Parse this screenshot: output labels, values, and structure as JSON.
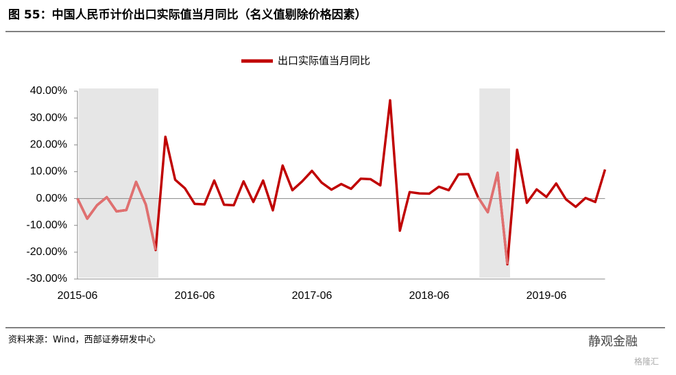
{
  "chart_data": {
    "type": "line",
    "title": "图 55：中国人民币计价出口实际值当月同比（名义值剔除价格因素）",
    "source": "资料来源：Wind，西部证券研发中心",
    "x": [
      "2015-06",
      "2015-07",
      "2015-08",
      "2015-09",
      "2015-10",
      "2015-11",
      "2015-12",
      "2016-01",
      "2016-02",
      "2016-03",
      "2016-04",
      "2016-05",
      "2016-06",
      "2016-07",
      "2016-08",
      "2016-09",
      "2016-10",
      "2016-11",
      "2016-12",
      "2017-01",
      "2017-02",
      "2017-03",
      "2017-04",
      "2017-05",
      "2017-06",
      "2017-07",
      "2017-08",
      "2017-09",
      "2017-10",
      "2017-11",
      "2017-12",
      "2018-01",
      "2018-02",
      "2018-03",
      "2018-04",
      "2018-05",
      "2018-06",
      "2018-07",
      "2018-08",
      "2018-09",
      "2018-10",
      "2018-11",
      "2018-12",
      "2019-01",
      "2019-02",
      "2019-03",
      "2019-04",
      "2019-05",
      "2019-06",
      "2019-07",
      "2019-08",
      "2019-09",
      "2019-10",
      "2019-11",
      "2019-12"
    ],
    "series": [
      {
        "name": "出口实际值当月同比",
        "color": "#c00000",
        "values": [
          0,
          -7.5,
          -2.5,
          0.5,
          -4.8,
          -4.3,
          6.2,
          -2.3,
          -19.2,
          23,
          7,
          3.8,
          -2,
          -2.2,
          6.7,
          -2.3,
          -2.5,
          6.4,
          -1.3,
          6.7,
          -4.4,
          12.3,
          3.1,
          6.4,
          10.3,
          5.9,
          3.3,
          5.4,
          3.6,
          7.4,
          7.2,
          4.9,
          36.6,
          -12,
          2.4,
          1.9,
          1.8,
          4.4,
          3.1,
          9.0,
          9.1,
          0.5,
          -5.1,
          9.6,
          -24.5,
          18.2,
          -1.6,
          3.4,
          0.6,
          5.6,
          -0.3,
          -3.1,
          0.2,
          -1.3,
          10.8
        ]
      }
    ],
    "shaded_periods": [
      [
        "2015-06",
        "2016-02"
      ],
      [
        "2018-11",
        "2019-02"
      ]
    ],
    "shaded_line_color": "#e07070",
    "shade_color": "#e6e6e6",
    "ylim": [
      -30,
      40
    ],
    "yticks": [
      {
        "value": 40,
        "label": "40.00%"
      },
      {
        "value": 30,
        "label": "30.00%"
      },
      {
        "value": 20,
        "label": "20.00%"
      },
      {
        "value": 10,
        "label": "10.00%"
      },
      {
        "value": 0,
        "label": "0.00%"
      },
      {
        "value": -10,
        "label": "-10.00%"
      },
      {
        "value": -20,
        "label": "-20.00%"
      },
      {
        "value": -30,
        "label": "-30.00%"
      }
    ],
    "xticks": [
      "2015-06",
      "2016-06",
      "2017-06",
      "2018-06",
      "2019-06"
    ],
    "legend": "top"
  },
  "watermark": {
    "brand": "静观金融",
    "site": "格隆汇"
  }
}
